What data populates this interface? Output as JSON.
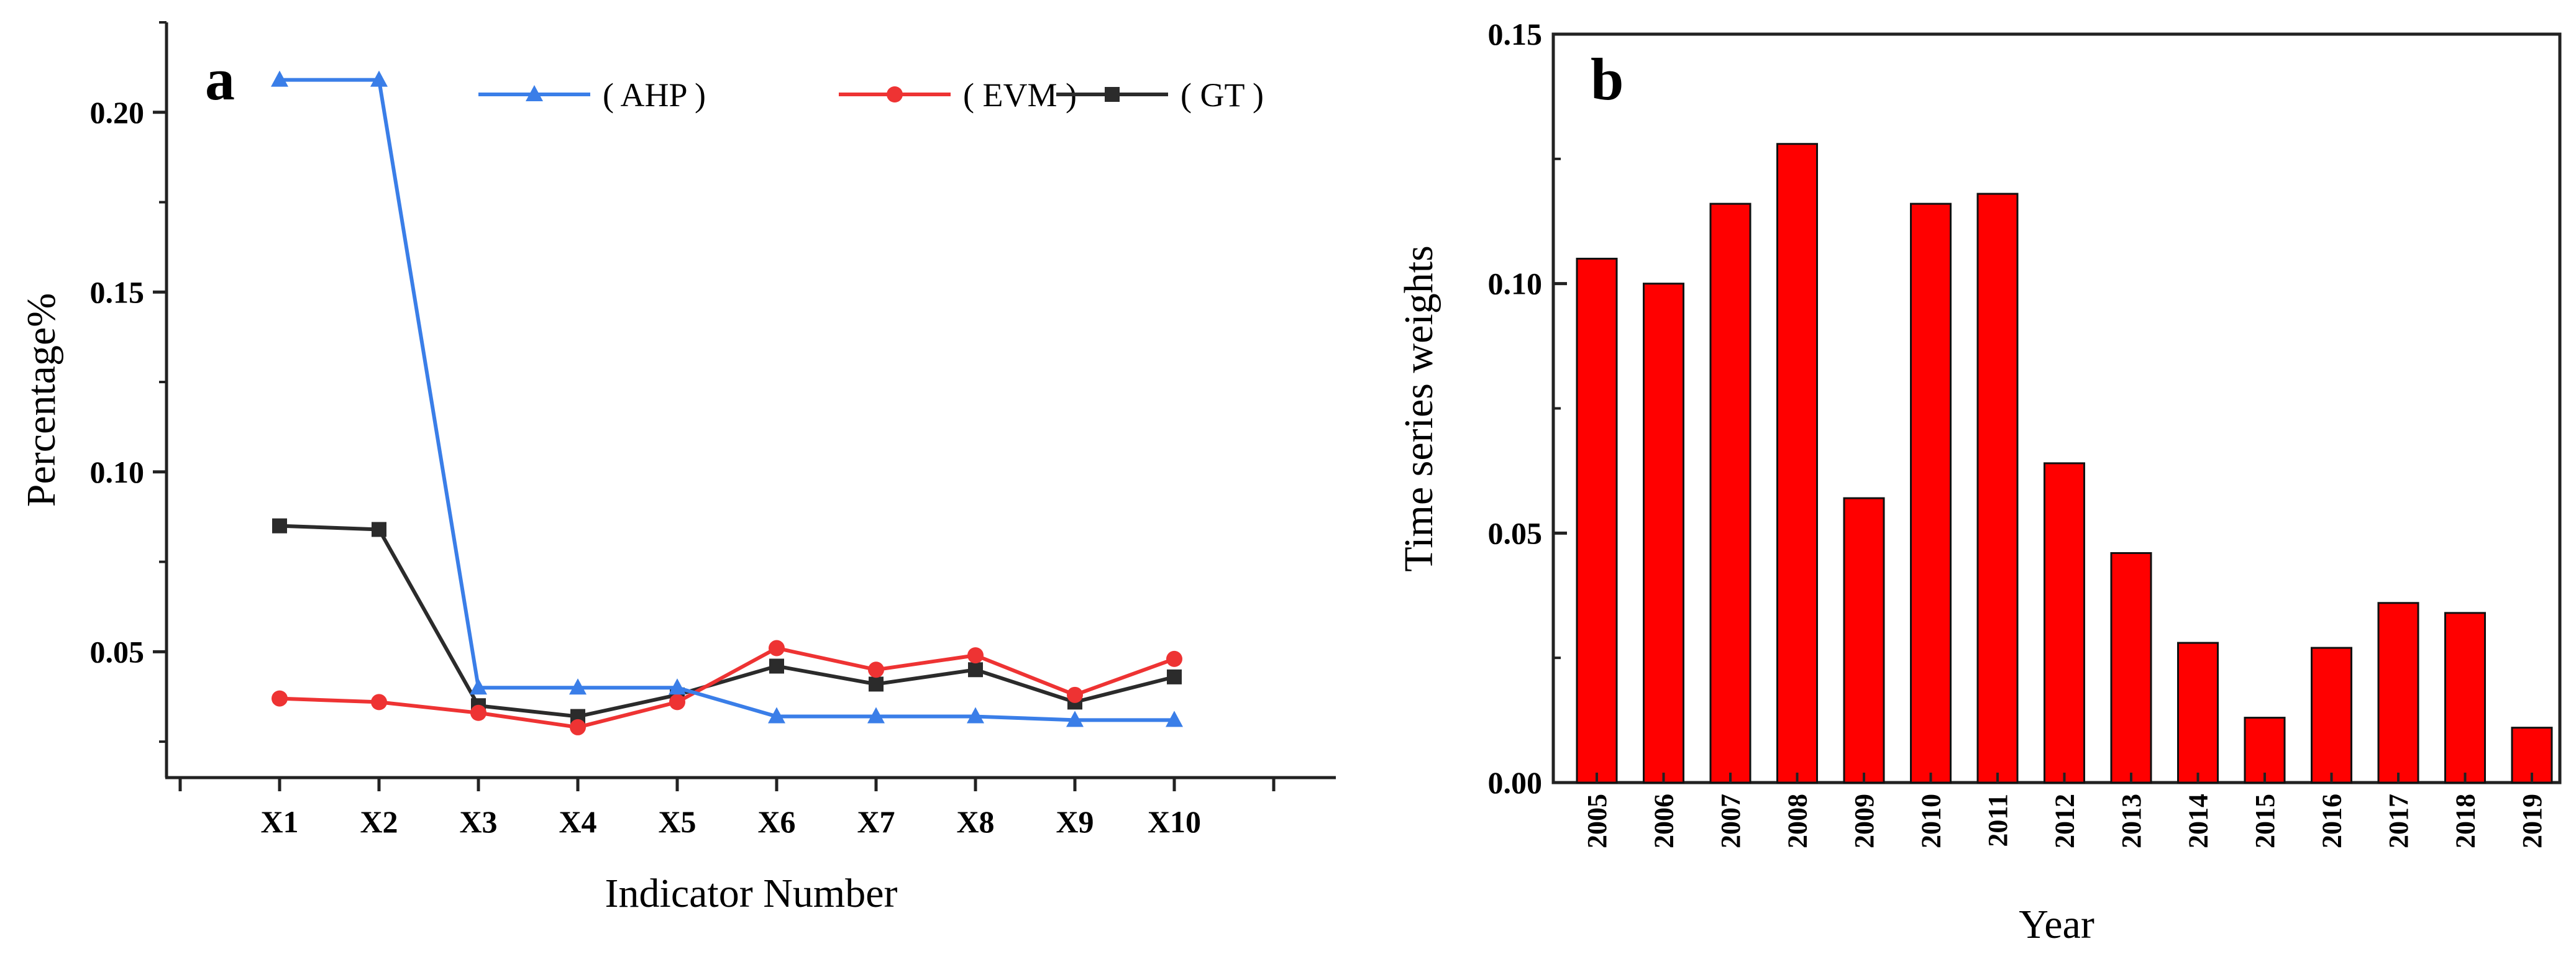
{
  "chart_data": [
    {
      "panel": "a",
      "type": "line",
      "xlabel": "Indicator Number",
      "ylabel": "Percentage%",
      "categories": [
        "X1",
        "X2",
        "X3",
        "X4",
        "X5",
        "X6",
        "X7",
        "X8",
        "X9",
        "X10"
      ],
      "ylim": [
        0.015,
        0.225
      ],
      "yticks": [
        0.05,
        0.1,
        0.15,
        0.2
      ],
      "ytick_labels": [
        "0.05",
        "0.10",
        "0.15",
        "0.20"
      ],
      "grid": false,
      "legend_position": "top-right",
      "series": [
        {
          "name": "( AHP )",
          "color": "#3a7ee8",
          "marker": "triangle",
          "values": [
            0.209,
            0.209,
            0.04,
            0.04,
            0.04,
            0.032,
            0.032,
            0.032,
            0.031,
            0.031
          ]
        },
        {
          "name": "( EVM )",
          "color": "#ee3333",
          "marker": "circle",
          "values": [
            0.037,
            0.036,
            0.033,
            0.029,
            0.036,
            0.051,
            0.045,
            0.049,
            0.038,
            0.048
          ]
        },
        {
          "name": "( GT )",
          "color": "#2b2b2b",
          "marker": "square",
          "values": [
            0.085,
            0.084,
            0.035,
            0.032,
            0.038,
            0.046,
            0.041,
            0.045,
            0.036,
            0.043
          ]
        }
      ]
    },
    {
      "panel": "b",
      "type": "bar",
      "xlabel": "Year",
      "ylabel": "Time series weights",
      "categories": [
        "2005",
        "2006",
        "2007",
        "2008",
        "2009",
        "2010",
        "2011",
        "2012",
        "2013",
        "2014",
        "2015",
        "2016",
        "2017",
        "2018",
        "2019"
      ],
      "values": [
        0.105,
        0.1,
        0.116,
        0.128,
        0.057,
        0.116,
        0.118,
        0.064,
        0.046,
        0.028,
        0.013,
        0.027,
        0.036,
        0.034,
        0.011
      ],
      "ylim": [
        0,
        0.15
      ],
      "yticks": [
        0,
        0.05,
        0.1,
        0.15
      ],
      "ytick_labels": [
        "0.00",
        "0.05",
        "0.10",
        "0.15"
      ],
      "bar_color": "#ff0000",
      "grid": false
    }
  ]
}
